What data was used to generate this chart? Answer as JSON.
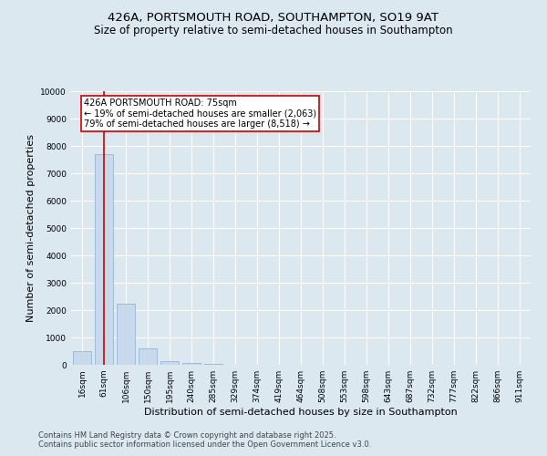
{
  "title1": "426A, PORTSMOUTH ROAD, SOUTHAMPTON, SO19 9AT",
  "title2": "Size of property relative to semi-detached houses in Southampton",
  "xlabel": "Distribution of semi-detached houses by size in Southampton",
  "ylabel": "Number of semi-detached properties",
  "categories": [
    "16sqm",
    "61sqm",
    "106sqm",
    "150sqm",
    "195sqm",
    "240sqm",
    "285sqm",
    "329sqm",
    "374sqm",
    "419sqm",
    "464sqm",
    "508sqm",
    "553sqm",
    "598sqm",
    "643sqm",
    "687sqm",
    "732sqm",
    "777sqm",
    "822sqm",
    "866sqm",
    "911sqm"
  ],
  "values": [
    500,
    7700,
    2250,
    600,
    150,
    60,
    20,
    10,
    5,
    2,
    1,
    1,
    0,
    0,
    0,
    0,
    0,
    0,
    0,
    0,
    0
  ],
  "bar_color": "#c8d9eb",
  "bar_edge_color": "#8aaccb",
  "vline_x": 1,
  "vline_color": "#cc0000",
  "annotation_line1": "426A PORTSMOUTH ROAD: 75sqm",
  "annotation_line2": "← 19% of semi-detached houses are smaller (2,063)",
  "annotation_line3": "79% of semi-detached houses are larger (8,518) →",
  "annotation_box_color": "white",
  "annotation_box_edge": "#cc0000",
  "bg_color": "#dce8f0",
  "plot_bg_color": "#dce8f0",
  "ylim": [
    0,
    10000
  ],
  "yticks": [
    0,
    1000,
    2000,
    3000,
    4000,
    5000,
    6000,
    7000,
    8000,
    9000,
    10000
  ],
  "footer1": "Contains HM Land Registry data © Crown copyright and database right 2025.",
  "footer2": "Contains public sector information licensed under the Open Government Licence v3.0.",
  "title_fontsize": 9.5,
  "subtitle_fontsize": 8.5,
  "axis_label_fontsize": 8,
  "tick_fontsize": 6.5,
  "annotation_fontsize": 7,
  "footer_fontsize": 6
}
